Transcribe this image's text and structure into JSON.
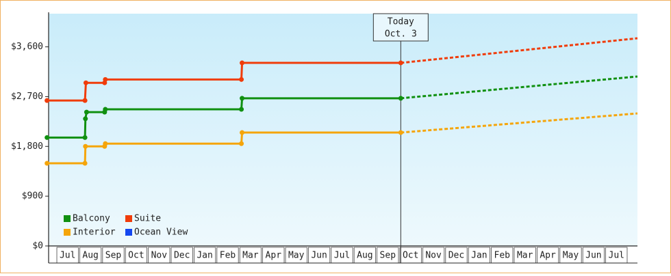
{
  "chart_data": {
    "type": "line",
    "annotation": {
      "x": 15.07,
      "lines": [
        "Today",
        "Oct. 3"
      ]
    },
    "xlim": [
      -0.33,
      25.42
    ],
    "xticks": [
      {
        "value": 0.5,
        "label": "Jul"
      },
      {
        "value": 1.5,
        "label": "Aug"
      },
      {
        "value": 2.5,
        "label": "Sep"
      },
      {
        "value": 3.5,
        "label": "Oct"
      },
      {
        "value": 4.5,
        "label": "Nov"
      },
      {
        "value": 5.5,
        "label": "Dec"
      },
      {
        "value": 6.5,
        "label": "Jan"
      },
      {
        "value": 7.5,
        "label": "Feb"
      },
      {
        "value": 8.5,
        "label": "Mar"
      },
      {
        "value": 9.5,
        "label": "Apr"
      },
      {
        "value": 10.5,
        "label": "May"
      },
      {
        "value": 11.5,
        "label": "Jun"
      },
      {
        "value": 12.5,
        "label": "Jul"
      },
      {
        "value": 13.5,
        "label": "Aug"
      },
      {
        "value": 14.5,
        "label": "Sep"
      },
      {
        "value": 15.5,
        "label": "Oct"
      },
      {
        "value": 16.5,
        "label": "Nov"
      },
      {
        "value": 17.5,
        "label": "Dec"
      },
      {
        "value": 18.5,
        "label": "Jan"
      },
      {
        "value": 19.5,
        "label": "Feb"
      },
      {
        "value": 20.5,
        "label": "Mar"
      },
      {
        "value": 21.5,
        "label": "Apr"
      },
      {
        "value": 22.5,
        "label": "May"
      },
      {
        "value": 23.5,
        "label": "Jun"
      },
      {
        "value": 24.5,
        "label": "Jul"
      }
    ],
    "ylim": [
      0,
      4200
    ],
    "yticks": [
      {
        "value": 0,
        "label": "$0"
      },
      {
        "value": 900,
        "label": "$900"
      },
      {
        "value": 1800,
        "label": "$1,800"
      },
      {
        "value": 2700,
        "label": "$2,700"
      },
      {
        "value": 3600,
        "label": "$3,600"
      }
    ],
    "projected_x": [
      15.07,
      25.42
    ],
    "series": [
      {
        "name": "Balcony",
        "color": "#109010",
        "x": [
          -0.4,
          1.26,
          1.28,
          1.33,
          2.12,
          2.15,
          8.1,
          8.13,
          15.07
        ],
        "values": [
          1960,
          1960,
          2300,
          2420,
          2420,
          2470,
          2470,
          2670,
          2670
        ],
        "projected_values": [
          2670,
          3064
        ]
      },
      {
        "name": "Suite",
        "color": "#f03c0a",
        "x": [
          -0.4,
          1.26,
          1.3,
          2.12,
          2.15,
          8.1,
          8.13,
          15.07
        ],
        "values": [
          2630,
          2630,
          2950,
          2950,
          3010,
          3010,
          3310,
          3310
        ],
        "projected_values": [
          3310,
          3755
        ]
      },
      {
        "name": "Interior",
        "color": "#f5a50a",
        "x": [
          -0.4,
          1.26,
          1.28,
          2.12,
          2.15,
          8.1,
          8.13,
          15.07
        ],
        "values": [
          1495,
          1495,
          1800,
          1800,
          1850,
          1850,
          2050,
          2050
        ],
        "projected_values": [
          2050,
          2396
        ]
      },
      {
        "name": "Ocean View",
        "color": "#1447f0",
        "x": [],
        "values": [],
        "projected_values": []
      }
    ]
  }
}
